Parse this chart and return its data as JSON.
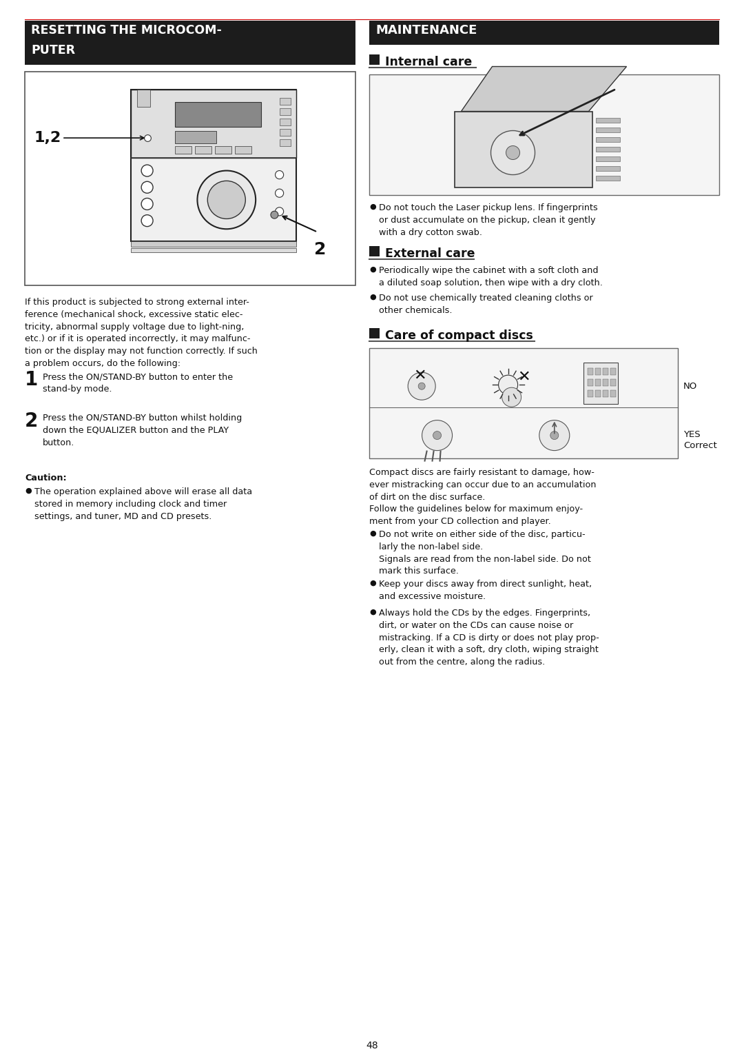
{
  "page_bg": "#ffffff",
  "header_bg": "#1c1c1c",
  "header_text_color": "#ffffff",
  "body_text_color": "#111111",
  "left_title_l1": "RESETTING THE MICROCOM-",
  "left_title_l2": "PUTER",
  "right_title": "MAINTENANCE",
  "page_number": "48",
  "left_body_text": "If this product is subjected to strong external inter-\nference (mechanical shock, excessive static elec-\ntricity, abnormal supply voltage due to light-ning,\netc.) or if it is operated incorrectly, it may malfunc-\ntion or the display may not function correctly. If such\na problem occurs, do the following:",
  "step1_text": "Press the ON/STAND-BY button to enter the\nstand-by mode.",
  "step2_text": "Press the ON/STAND-BY button whilst holding\ndown the EQUALIZER button and the PLAY\nbutton.",
  "caution_label": "Caution:",
  "caution_bullet": "The operation explained above will erase all data\nstored in memory including clock and timer\nsettings, and tuner, MD and CD presets.",
  "internal_care_title": "Internal care",
  "internal_care_bullet": "Do not touch the Laser pickup lens. If fingerprints\nor dust accumulate on the pickup, clean it gently\nwith a dry cotton swab.",
  "external_care_title": "External care",
  "ec_bullet1": "Periodically wipe the cabinet with a soft cloth and\na diluted soap solution, then wipe with a dry cloth.",
  "ec_bullet2": "Do not use chemically treated cleaning cloths or\nother chemicals.",
  "compact_discs_title": "Care of compact discs",
  "cd_intro": "Compact discs are fairly resistant to damage, how-\never mistracking can occur due to an accumulation\nof dirt on the disc surface.\nFollow the guidelines below for maximum enjoy-\nment from your CD collection and player.",
  "cd_bullet1": "Do not write on either side of the disc, particu-\nlarly the non-label side.\nSignals are read from the non-label side. Do not\nmark this surface.",
  "cd_bullet2": "Keep your discs away from direct sunlight, heat,\nand excessive moisture.",
  "cd_bullet3": "Always hold the CDs by the edges. Fingerprints,\ndirt, or water on the CDs can cause noise or\nmistracking. If a CD is dirty or does not play prop-\nerly, clean it with a soft, dry cloth, wiping straight\nout from the centre, along the radius.",
  "no_label": "NO",
  "yes_label": "YES\nCorrect",
  "red_line_color": "#cc0000",
  "section_sq_color": "#1c1c1c",
  "underline_color": "#555555"
}
